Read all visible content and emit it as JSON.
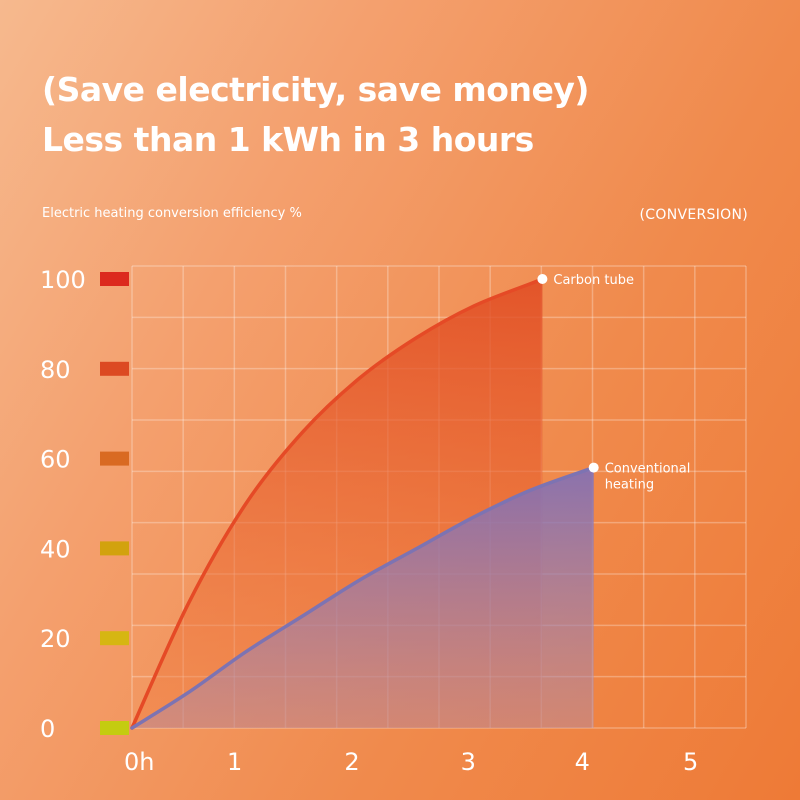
{
  "header": {
    "line1": "(Save electricity, save money)",
    "line2": "Less than 1 kWh in 3 hours"
  },
  "chart_data": {
    "type": "area",
    "title": "Electric heating conversion efficiency %",
    "tag": "(CONVERSION)",
    "x_ticks": [
      "0h",
      "1",
      "2",
      "3",
      "4",
      "5"
    ],
    "xlim": [
      0,
      5.5
    ],
    "y_ticks": [
      0,
      20,
      40,
      60,
      80,
      100
    ],
    "ylim": [
      0,
      100
    ],
    "grid": true,
    "y_tick_colors": [
      "#c4cc10",
      "#d6b612",
      "#d2a20e",
      "#d96a22",
      "#dc4a22",
      "#dc2a1e"
    ],
    "series": [
      {
        "name": "Carbon tube",
        "color": "#e54a26",
        "fill": "#e35a2c",
        "x": [
          0,
          0.5,
          1,
          1.5,
          2,
          2.5,
          3,
          3.5,
          3.6
        ],
        "values": [
          0,
          28,
          50,
          66,
          78,
          87,
          94,
          99,
          100
        ]
      },
      {
        "name": "Conventional heating",
        "label_lines": [
          "Conventional",
          "heating"
        ],
        "color": "#7d73b2",
        "fill": "#8a78b4",
        "x": [
          0,
          0.5,
          1,
          1.5,
          2,
          2.5,
          3,
          3.5,
          4.05
        ],
        "values": [
          0,
          8,
          17,
          25,
          33,
          40,
          47,
          53,
          58
        ]
      }
    ]
  }
}
